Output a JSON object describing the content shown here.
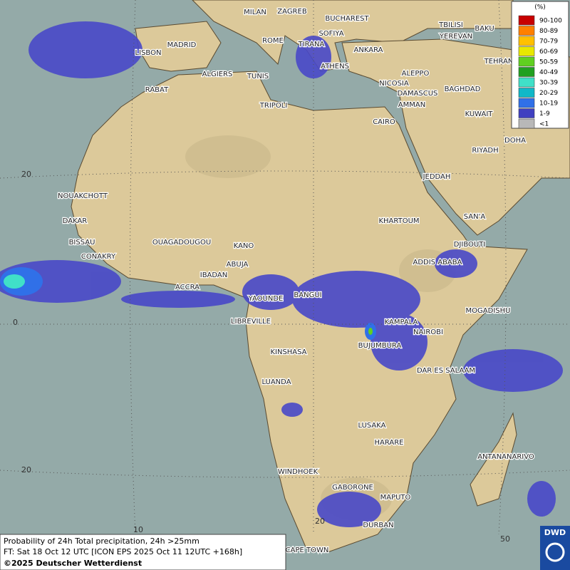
{
  "legend": {
    "title": "(%)",
    "items": [
      {
        "label": "90-100",
        "color": "#c80000"
      },
      {
        "label": "80-89",
        "color": "#ff8000"
      },
      {
        "label": "70-79",
        "color": "#ffc000"
      },
      {
        "label": "60-69",
        "color": "#e8e800"
      },
      {
        "label": "50-59",
        "color": "#60d020"
      },
      {
        "label": "40-49",
        "color": "#20a020"
      },
      {
        "label": "30-39",
        "color": "#40e0c8"
      },
      {
        "label": "20-29",
        "color": "#10b8c8"
      },
      {
        "label": "10-19",
        "color": "#3070e8"
      },
      {
        "label": "1-9",
        "color": "#4040c0"
      },
      {
        "label": "<1",
        "color": "#b8b8b8"
      }
    ]
  },
  "cities": [
    "MILAN",
    "ZAGREB",
    "BUCHAREST",
    "TBILISI",
    "BAKU",
    "LISBON",
    "MADRID",
    "ROME",
    "TIRANA",
    "SOFIYA",
    "YEREVAN",
    "ANKARA",
    "TEHRAN",
    "ATHENS",
    "ALGIERS",
    "TUNIS",
    "ALEPPO",
    "RABAT",
    "NICOSIA",
    "BAGHDAD",
    "DAMASCUS",
    "TRIPOLI",
    "AMMAN",
    "KUWAIT",
    "CAIRO",
    "DOHA",
    "RIYADH",
    "JEDDAH",
    "NOUAKCHOTT",
    "SAN'A",
    "DAKAR",
    "KHARTOUM",
    "BISSAU",
    "OUAGADOUGOU",
    "KANO",
    "DJIBOUTI",
    "CONAKRY",
    "ABUJA",
    "ADDIS ABABA",
    "IBADAN",
    "ACCRA",
    "YAOUNDE",
    "BANGUI",
    "MOGADISHU",
    "LIBREVILLE",
    "KAMPALA",
    "NAIROBI",
    "BUJUMBURA",
    "KINSHASA",
    "DAR ES SALAAM",
    "LUANDA",
    "LUSAKA",
    "HARARE",
    "ANTANANARIVO",
    "WINDHOEK",
    "GABORONE",
    "MAPUTO",
    "DURBAN",
    "CAPE TOWN"
  ],
  "grid_labels": {
    "lat": [
      "20",
      "0",
      "20"
    ],
    "lon": [
      "10",
      "20",
      "50"
    ]
  },
  "footer": {
    "line1": "Probability of 24h Total precipitation, 24h >25mm",
    "line2": "FT: Sat 18 Oct 12 UTC [ICON EPS 2025 Oct 11 12UTC +168h]",
    "line3": "©2025 Deutscher Wetterdienst"
  },
  "logo": "DWD"
}
